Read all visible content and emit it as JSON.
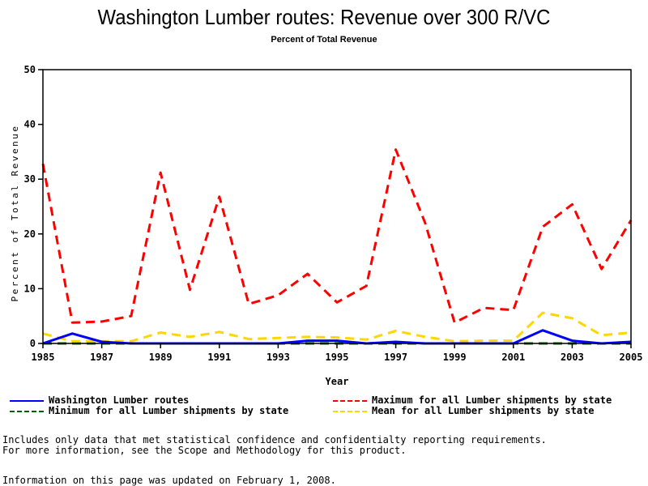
{
  "chart_data": {
    "type": "line",
    "title": "Washington Lumber routes: Revenue over 300 R/VC",
    "subtitle": "Percent of Total Revenue",
    "xlabel": "Year",
    "ylabel": "Percent of Total Revenue",
    "xlim": [
      1985,
      2005
    ],
    "ylim": [
      0,
      50
    ],
    "x_ticks": [
      "1985",
      "1987",
      "1989",
      "1991",
      "1993",
      "1995",
      "1997",
      "1999",
      "2001",
      "2003",
      "2005"
    ],
    "y_ticks": [
      "0",
      "10",
      "20",
      "30",
      "40",
      "50"
    ],
    "grid": false,
    "legend_position": "bottom",
    "x": [
      1985,
      1986,
      1987,
      1988,
      1989,
      1990,
      1991,
      1992,
      1993,
      1994,
      1995,
      1996,
      1997,
      1998,
      1999,
      2000,
      2001,
      2002,
      2003,
      2004,
      2005
    ],
    "series": [
      {
        "name": "Washington Lumber routes",
        "color": "#0000ff",
        "style": "solid",
        "values": [
          0,
          1.8,
          0.3,
          0,
          0,
          0,
          0,
          0,
          0,
          0.5,
          0.5,
          0,
          0.3,
          0,
          0,
          0,
          0,
          2.4,
          0.5,
          0,
          0.3
        ]
      },
      {
        "name": "Maximum for all Lumber shipments by state",
        "color": "#ff0000",
        "style": "dashed",
        "values": [
          32.8,
          3.8,
          4.0,
          5.0,
          31.2,
          9.8,
          26.8,
          7.2,
          8.8,
          12.7,
          7.5,
          10.5,
          35.4,
          22.0,
          3.8,
          6.5,
          6.1,
          21.3,
          25.4,
          13.6,
          22.5
        ]
      },
      {
        "name": "Minimum for all Lumber shipments by state",
        "color": "#006400",
        "style": "dashed",
        "values": [
          0,
          0,
          0,
          0,
          0,
          0,
          0,
          0,
          0,
          0,
          0,
          0,
          0,
          0,
          0,
          0,
          0,
          0,
          0,
          0,
          0
        ]
      },
      {
        "name": "Mean for all Lumber shipments by state",
        "color": "#ffd700",
        "style": "dashed",
        "values": [
          1.8,
          0.4,
          0.4,
          0.4,
          2.0,
          1.2,
          2.1,
          0.8,
          1.0,
          1.2,
          1.1,
          0.7,
          2.3,
          1.2,
          0.4,
          0.5,
          0.5,
          5.6,
          4.6,
          1.5,
          2.0
        ]
      }
    ]
  },
  "footer": {
    "note_line1": "Includes only data that met statistical confidence and confidentialty reporting requirements.",
    "note_line2": "For more information, see the Scope and Methodology for this product.",
    "updated": "Information on this page was updated on February 1, 2008."
  }
}
